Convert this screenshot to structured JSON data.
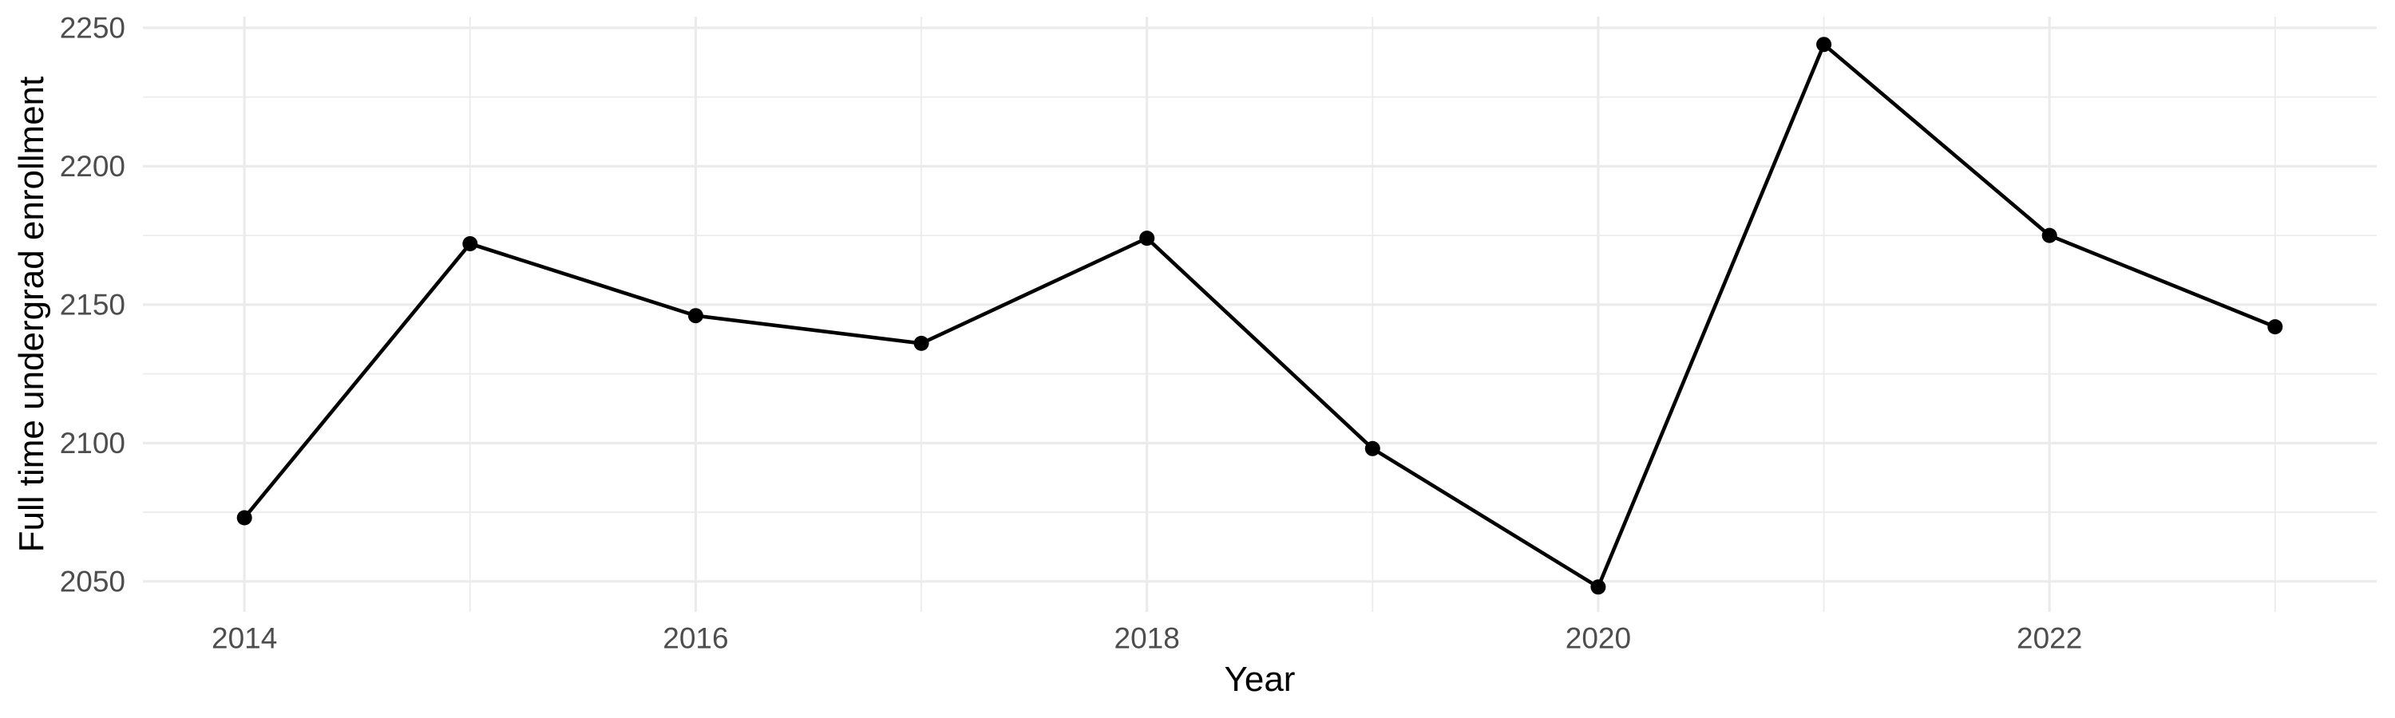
{
  "chart_data": {
    "type": "line",
    "title": "",
    "xlabel": "Year",
    "ylabel": "Full time undergrad enrollment",
    "series": [
      {
        "name": "Full time undergrad enrollment",
        "x": [
          2014,
          2015,
          2016,
          2017,
          2018,
          2019,
          2020,
          2021,
          2022,
          2023
        ],
        "values": [
          2073,
          2172,
          2146,
          2136,
          2174,
          2098,
          2048,
          2244,
          2175,
          2142
        ]
      }
    ],
    "xlim": [
      2013.55,
      2023.45
    ],
    "ylim": [
      2039,
      2254
    ],
    "x_major_ticks": [
      2014,
      2016,
      2018,
      2020,
      2022
    ],
    "x_minor_gridlines": [
      2015,
      2017,
      2019,
      2021,
      2023
    ],
    "y_major_ticks": [
      2050,
      2100,
      2150,
      2200,
      2250
    ],
    "y_minor_gridlines": [
      2075,
      2125,
      2175,
      2225
    ],
    "grid": "major-and-minor",
    "legend_position": "none",
    "colors": {
      "background": "#ffffff",
      "gridline": "#ebebeb",
      "line": "#000000",
      "point": "#000000",
      "tick_label": "#4d4d4d",
      "axis_title": "#000000"
    }
  }
}
